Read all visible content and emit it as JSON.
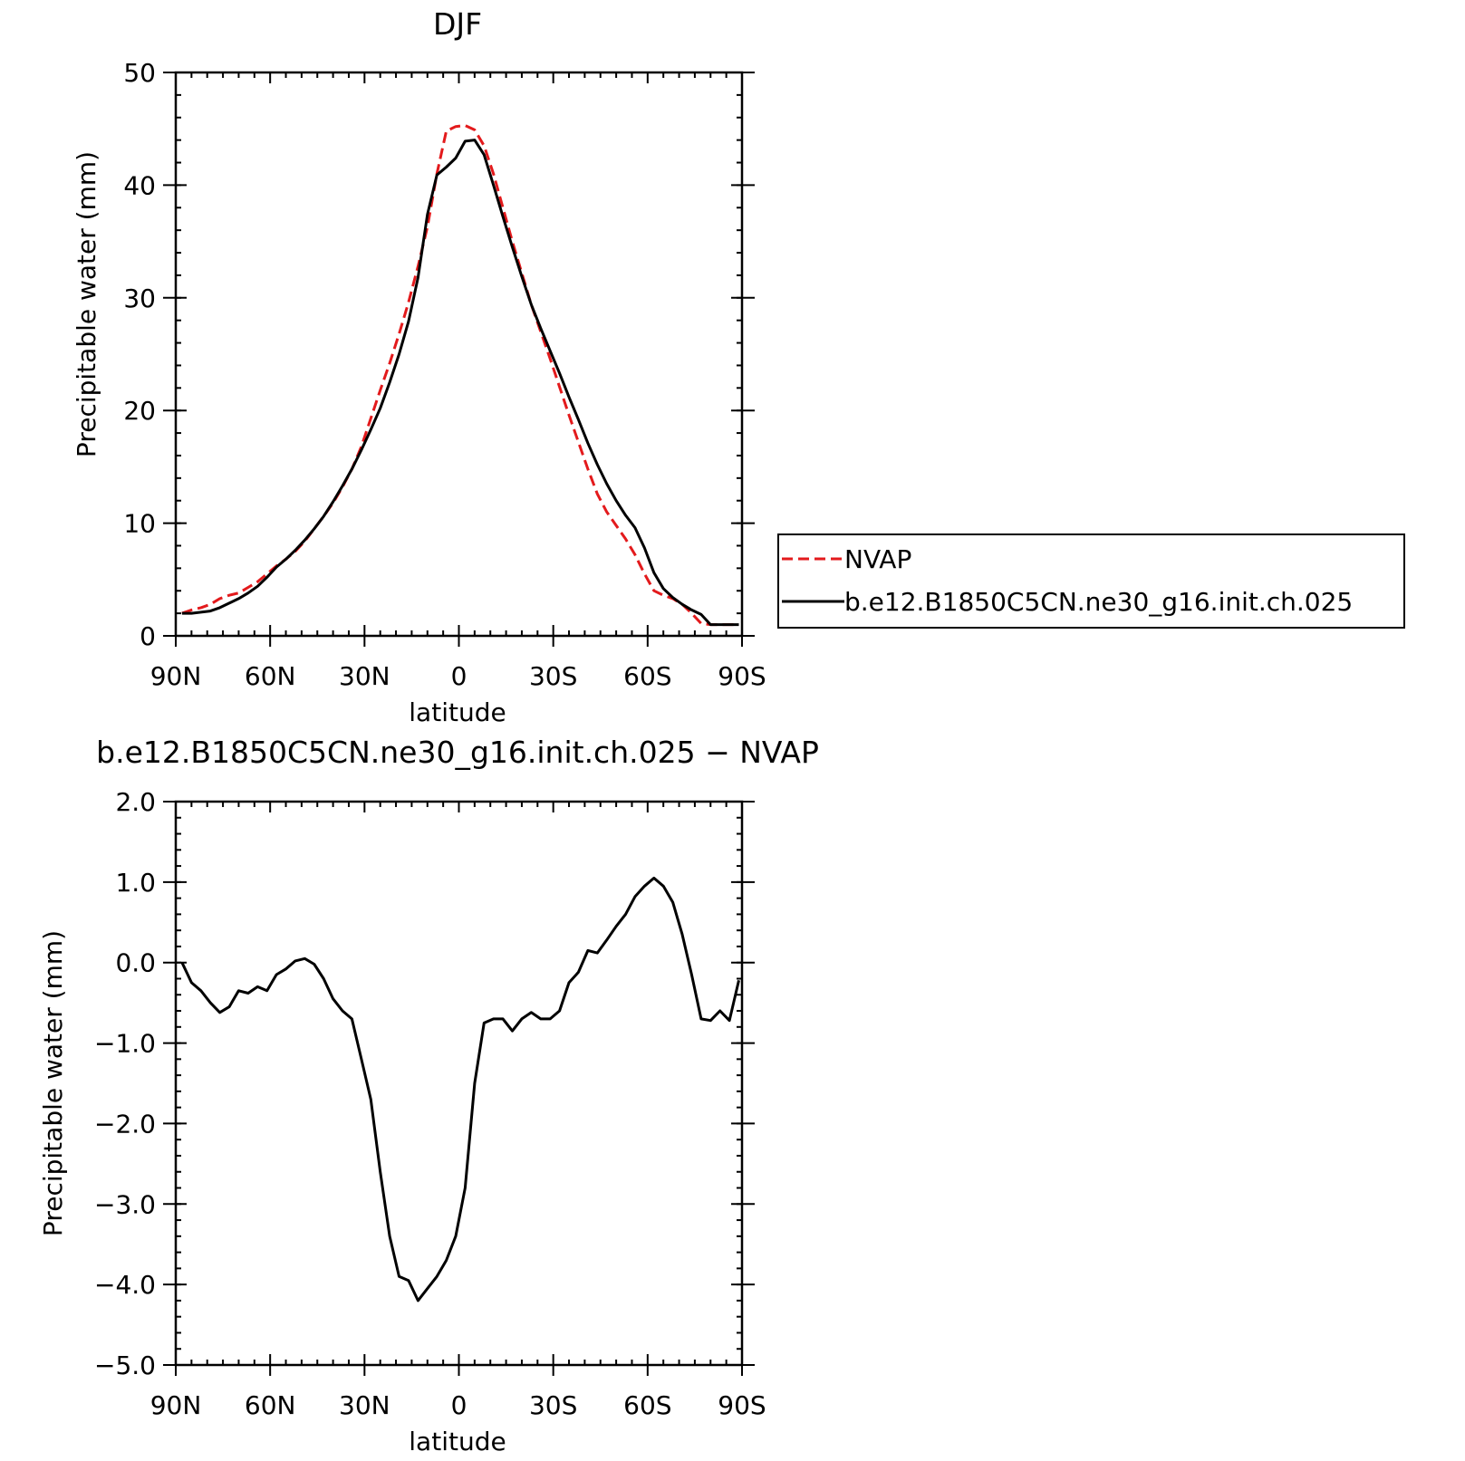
{
  "chart_data": [
    {
      "type": "line",
      "title": "DJF",
      "xlabel": "latitude",
      "ylabel": "Precipitable water (mm)",
      "xlim": [
        90,
        -90
      ],
      "ylim": [
        0,
        50
      ],
      "xticks": [
        {
          "value": 90,
          "label": "90N"
        },
        {
          "value": 60,
          "label": "60N"
        },
        {
          "value": 30,
          "label": "30N"
        },
        {
          "value": 0,
          "label": "0"
        },
        {
          "value": -30,
          "label": "30S"
        },
        {
          "value": -60,
          "label": "60S"
        },
        {
          "value": -90,
          "label": "90S"
        }
      ],
      "yticks": [
        {
          "value": 0,
          "label": "0"
        },
        {
          "value": 10,
          "label": "10"
        },
        {
          "value": 20,
          "label": "20"
        },
        {
          "value": 30,
          "label": "30"
        },
        {
          "value": 40,
          "label": "40"
        },
        {
          "value": 50,
          "label": "50"
        }
      ],
      "legend_position": "right",
      "series": [
        {
          "name": "NVAP",
          "color": "#e31a1c",
          "dash": "dashed",
          "x": [
            88,
            85,
            82,
            79,
            76,
            73,
            70,
            67,
            64,
            61,
            58,
            55,
            52,
            49,
            46,
            43,
            40,
            37,
            34,
            31,
            28,
            25,
            22,
            19,
            16,
            13,
            10,
            7,
            4,
            1,
            -2,
            -5,
            -8,
            -11,
            -14,
            -17,
            -20,
            -23,
            -26,
            -29,
            -32,
            -35,
            -38,
            -41,
            -44,
            -47,
            -50,
            -53,
            -56,
            -59,
            -62,
            -65,
            -68,
            -71,
            -74,
            -77,
            -80,
            -83,
            -86,
            -89
          ],
          "y": [
            2.0,
            2.3,
            2.5,
            2.8,
            3.3,
            3.6,
            3.8,
            4.3,
            4.8,
            5.5,
            6.2,
            6.8,
            7.5,
            8.4,
            9.5,
            10.6,
            11.8,
            13.2,
            14.8,
            16.8,
            19.3,
            21.8,
            24.2,
            26.8,
            29.6,
            32.8,
            36.3,
            41.0,
            44.8,
            45.2,
            45.3,
            44.9,
            43.5,
            41.0,
            38.0,
            35.0,
            32.2,
            29.4,
            27.0,
            24.6,
            22.1,
            19.6,
            17.2,
            14.8,
            12.6,
            11.0,
            9.8,
            8.6,
            7.2,
            5.5,
            4.0,
            3.6,
            3.3,
            2.8,
            2.0,
            1.1,
            1.0,
            1.0,
            1.0,
            1.0
          ]
        },
        {
          "name": "b.e12.B1850C5CN.ne30_g16.init.ch.025",
          "color": "#000000",
          "dash": "solid",
          "x": [
            88,
            85,
            82,
            79,
            76,
            73,
            70,
            67,
            64,
            61,
            58,
            55,
            52,
            49,
            46,
            43,
            40,
            37,
            34,
            31,
            28,
            25,
            22,
            19,
            16,
            13,
            10,
            7,
            4,
            1,
            -2,
            -5,
            -8,
            -11,
            -14,
            -17,
            -20,
            -23,
            -26,
            -29,
            -32,
            -35,
            -38,
            -41,
            -44,
            -47,
            -50,
            -53,
            -56,
            -59,
            -62,
            -65,
            -68,
            -71,
            -74,
            -77,
            -80,
            -83,
            -86,
            -89
          ],
          "y": [
            2.0,
            2.0,
            2.1,
            2.2,
            2.5,
            2.9,
            3.3,
            3.8,
            4.4,
            5.2,
            6.1,
            6.8,
            7.6,
            8.5,
            9.5,
            10.6,
            11.9,
            13.3,
            14.8,
            16.5,
            18.3,
            20.2,
            22.5,
            25.0,
            27.9,
            31.8,
            37.4,
            40.9,
            41.6,
            42.4,
            43.9,
            44.0,
            42.7,
            40.0,
            37.2,
            34.5,
            31.9,
            29.4,
            27.3,
            25.3,
            23.3,
            21.2,
            19.2,
            17.1,
            15.2,
            13.5,
            12.0,
            10.7,
            9.6,
            7.8,
            5.6,
            4.2,
            3.4,
            2.8,
            2.3,
            1.9,
            1.0,
            1.0,
            1.0,
            1.0
          ]
        }
      ]
    },
    {
      "type": "line",
      "title": "b.e12.B1850C5CN.ne30_g16.init.ch.025 − NVAP",
      "xlabel": "latitude",
      "ylabel": "Precipitable water (mm)",
      "xlim": [
        90,
        -90
      ],
      "ylim": [
        -5.0,
        2.0
      ],
      "xticks": [
        {
          "value": 90,
          "label": "90N"
        },
        {
          "value": 60,
          "label": "60N"
        },
        {
          "value": 30,
          "label": "30N"
        },
        {
          "value": 0,
          "label": "0"
        },
        {
          "value": -30,
          "label": "30S"
        },
        {
          "value": -60,
          "label": "60S"
        },
        {
          "value": -90,
          "label": "90S"
        }
      ],
      "yticks": [
        {
          "value": 2,
          "label": "2.0"
        },
        {
          "value": 1,
          "label": "1.0"
        },
        {
          "value": 0,
          "label": "0.0"
        },
        {
          "value": -1,
          "label": "−1.0"
        },
        {
          "value": -2,
          "label": "−2.0"
        },
        {
          "value": -3,
          "label": "−3.0"
        },
        {
          "value": -4,
          "label": "−4.0"
        },
        {
          "value": -5,
          "label": "−5.0"
        }
      ],
      "series": [
        {
          "color": "#000000",
          "dash": "solid",
          "x": [
            88,
            85,
            82,
            79,
            76,
            73,
            70,
            67,
            64,
            61,
            58,
            55,
            52,
            49,
            46,
            43,
            40,
            37,
            34,
            31,
            28,
            25,
            22,
            19,
            16,
            13,
            10,
            7,
            4,
            1,
            -2,
            -5,
            -8,
            -11,
            -14,
            -17,
            -20,
            -23,
            -26,
            -29,
            -32,
            -35,
            -38,
            -41,
            -44,
            -47,
            -50,
            -53,
            -56,
            -59,
            -62,
            -65,
            -68,
            -71,
            -74,
            -77,
            -80,
            -83,
            -86,
            -89
          ],
          "y": [
            0.0,
            -0.25,
            -0.35,
            -0.5,
            -0.62,
            -0.55,
            -0.35,
            -0.38,
            -0.3,
            -0.35,
            -0.15,
            -0.08,
            0.02,
            0.05,
            -0.02,
            -0.2,
            -0.45,
            -0.6,
            -0.7,
            -1.2,
            -1.7,
            -2.6,
            -3.4,
            -3.9,
            -3.95,
            -4.2,
            -4.05,
            -3.9,
            -3.7,
            -3.4,
            -2.8,
            -1.5,
            -0.75,
            -0.7,
            -0.7,
            -0.85,
            -0.7,
            -0.62,
            -0.7,
            -0.7,
            -0.6,
            -0.25,
            -0.12,
            0.15,
            0.12,
            0.28,
            0.45,
            0.6,
            0.82,
            0.95,
            1.05,
            0.95,
            0.75,
            0.35,
            -0.15,
            -0.7,
            -0.72,
            -0.6,
            -0.72,
            -0.22
          ]
        }
      ]
    }
  ]
}
